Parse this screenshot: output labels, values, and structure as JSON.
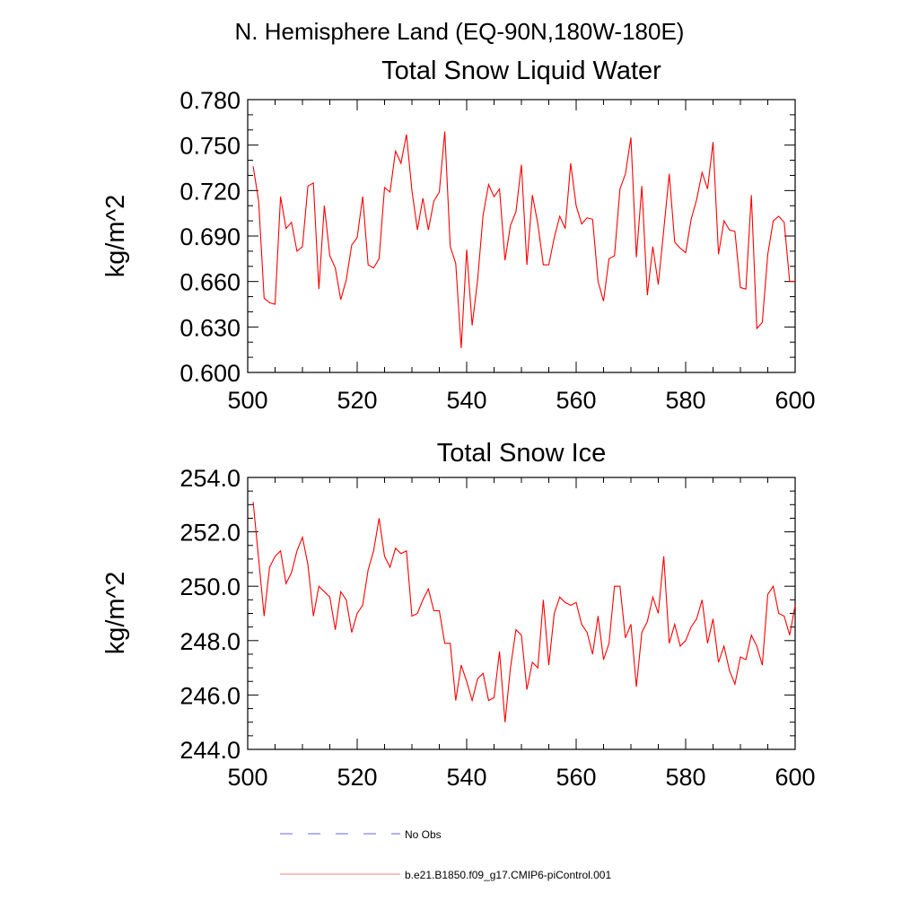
{
  "main_title": "N. Hemisphere Land (EQ-90N,180W-180E)",
  "colors": {
    "model": "#ff0000",
    "obs": "#6666ff",
    "axis": "#000000"
  },
  "legend": [
    {
      "label": "No Obs",
      "style": "dashed",
      "color": "#6666ff"
    },
    {
      "label": "b.e21.B1850.f09_g17.CMIP6-piControl.001",
      "style": "solid",
      "color": "#ff0000"
    }
  ],
  "chart_data": [
    {
      "type": "line",
      "title": "Total Snow Liquid Water",
      "xlabel": "",
      "ylabel": "kg/m^2",
      "xlim": [
        500,
        600
      ],
      "ylim": [
        0.6,
        0.78
      ],
      "xticks": [
        "500",
        "520",
        "540",
        "560",
        "580",
        "600"
      ],
      "yticks": [
        "0.600",
        "0.630",
        "0.660",
        "0.690",
        "0.720",
        "0.750",
        "0.780"
      ],
      "x_start": 501,
      "series": [
        {
          "name": "b.e21.B1850.f09_g17.CMIP6-piControl.001",
          "values": [
            0.736,
            0.713,
            0.649,
            0.646,
            0.645,
            0.716,
            0.695,
            0.699,
            0.68,
            0.683,
            0.723,
            0.725,
            0.655,
            0.71,
            0.677,
            0.669,
            0.648,
            0.661,
            0.684,
            0.689,
            0.716,
            0.671,
            0.669,
            0.675,
            0.722,
            0.719,
            0.746,
            0.738,
            0.757,
            0.72,
            0.694,
            0.715,
            0.694,
            0.713,
            0.719,
            0.759,
            0.683,
            0.672,
            0.616,
            0.681,
            0.631,
            0.661,
            0.704,
            0.724,
            0.716,
            0.721,
            0.674,
            0.697,
            0.706,
            0.737,
            0.671,
            0.717,
            0.698,
            0.671,
            0.671,
            0.689,
            0.703,
            0.695,
            0.738,
            0.71,
            0.698,
            0.702,
            0.701,
            0.66,
            0.647,
            0.675,
            0.677,
            0.721,
            0.731,
            0.755,
            0.676,
            0.723,
            0.651,
            0.683,
            0.658,
            0.694,
            0.731,
            0.686,
            0.682,
            0.679,
            0.701,
            0.714,
            0.732,
            0.721,
            0.752,
            0.678,
            0.7,
            0.694,
            0.693,
            0.656,
            0.655,
            0.717,
            0.629,
            0.633,
            0.678,
            0.7,
            0.703,
            0.699,
            0.66,
            0.66
          ]
        }
      ]
    },
    {
      "type": "line",
      "title": "Total Snow Ice",
      "xlabel": "",
      "ylabel": "kg/m^2",
      "xlim": [
        500,
        600
      ],
      "ylim": [
        244,
        254
      ],
      "xticks": [
        "500",
        "520",
        "540",
        "560",
        "580",
        "600"
      ],
      "yticks": [
        "244.0",
        "246.0",
        "248.0",
        "250.0",
        "252.0",
        "254.0"
      ],
      "x_start": 501,
      "series": [
        {
          "name": "b.e21.B1850.f09_g17.CMIP6-piControl.001",
          "values": [
            253.1,
            251.0,
            248.9,
            250.7,
            251.1,
            251.3,
            250.1,
            250.5,
            251.3,
            251.8,
            250.8,
            248.9,
            250.0,
            249.8,
            249.6,
            248.4,
            249.8,
            249.5,
            248.3,
            249.0,
            249.3,
            250.6,
            251.3,
            252.5,
            251.1,
            250.7,
            251.4,
            251.2,
            251.3,
            248.9,
            249.0,
            249.5,
            249.9,
            249.1,
            249.1,
            247.9,
            247.9,
            245.8,
            247.1,
            246.5,
            245.8,
            246.6,
            246.8,
            245.8,
            245.9,
            247.6,
            245.0,
            247.0,
            248.4,
            248.2,
            246.2,
            247.2,
            247.0,
            249.5,
            247.1,
            249.0,
            249.6,
            249.4,
            249.3,
            249.4,
            248.6,
            248.3,
            247.5,
            248.9,
            247.3,
            247.9,
            250.0,
            250.0,
            248.1,
            248.6,
            246.3,
            248.3,
            248.7,
            249.6,
            249.0,
            251.1,
            247.9,
            248.6,
            247.8,
            248.0,
            248.5,
            248.8,
            249.5,
            247.9,
            248.8,
            247.2,
            247.8,
            246.9,
            246.4,
            247.4,
            247.3,
            248.2,
            247.8,
            247.1,
            249.7,
            250.0,
            249.0,
            248.9,
            248.2,
            249.3
          ]
        }
      ]
    }
  ]
}
